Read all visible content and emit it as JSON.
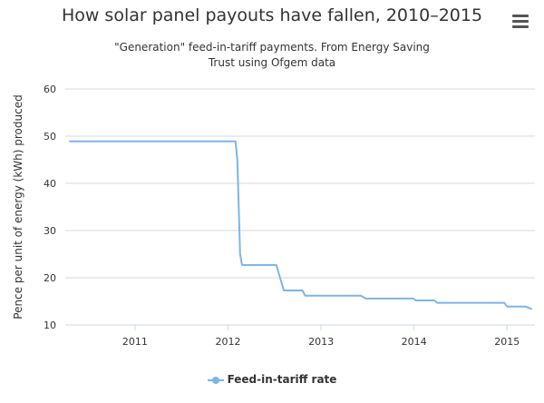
{
  "menu_icon": "hamburger-menu-icon",
  "colors": {
    "series": "#7cb5ec",
    "grid": "#d8d8d8",
    "axis": "#ccd6eb"
  },
  "chart_data": {
    "type": "line",
    "title": "How solar panel payouts have fallen, 2010–2015",
    "subtitle": "\"Generation\" feed-in-tariff payments. From Energy Saving Trust using Ofgem data",
    "xlabel": "",
    "ylabel": "Pence per unit of energy (kWh) produced",
    "xlim": [
      2010.25,
      2015.3
    ],
    "ylim": [
      10,
      60
    ],
    "x_ticks": [
      "2011",
      "2012",
      "2013",
      "2014",
      "2015"
    ],
    "y_ticks": [
      "10",
      "20",
      "30",
      "40",
      "50",
      "60"
    ],
    "grid": true,
    "legend_position": "bottom",
    "series": [
      {
        "name": "Feed-in-tariff rate",
        "x": [
          2010.3,
          2012.08,
          2012.1,
          2012.13,
          2012.15,
          2012.52,
          2012.6,
          2012.8,
          2012.83,
          2013.43,
          2013.48,
          2013.99,
          2014.02,
          2014.22,
          2014.25,
          2014.97,
          2015.0,
          2015.2,
          2015.26
        ],
        "y": [
          48.9,
          48.9,
          45,
          25,
          22.7,
          22.7,
          17.3,
          17.3,
          16.2,
          16.2,
          15.6,
          15.6,
          15.2,
          15.2,
          14.7,
          14.7,
          13.9,
          13.9,
          13.4
        ]
      }
    ]
  }
}
